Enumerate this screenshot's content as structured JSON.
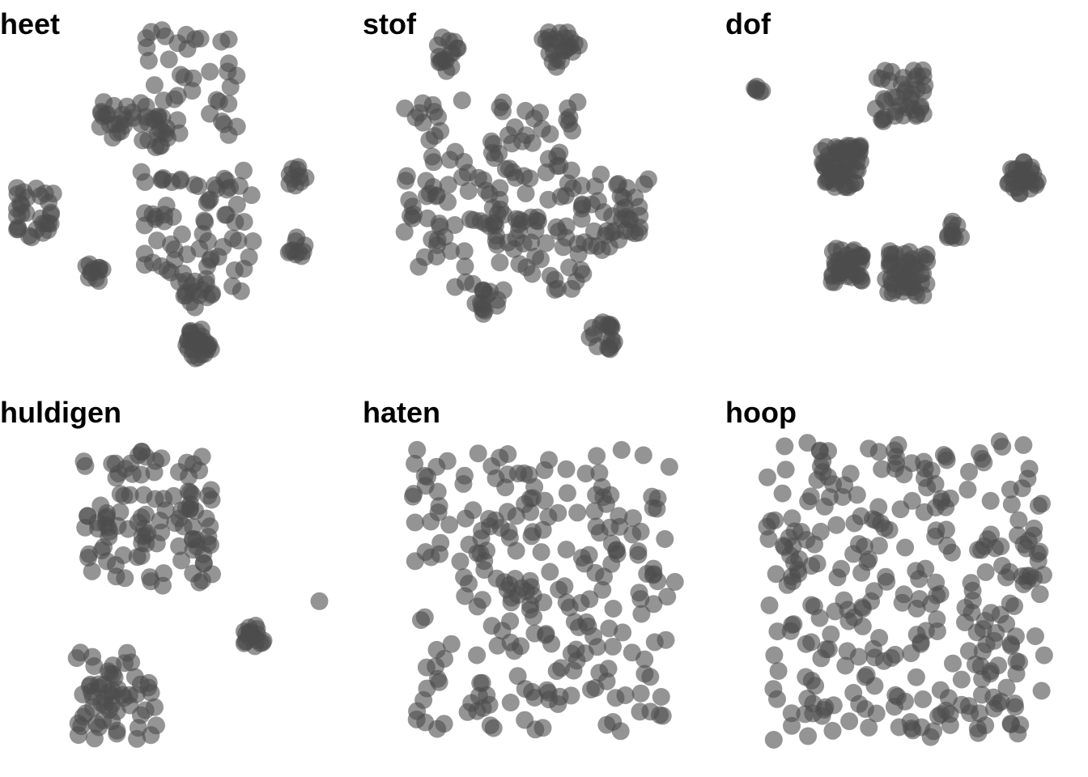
{
  "colors": {
    "point": "#4d4d4d",
    "background": "#ffffff",
    "title": "#000000"
  },
  "chart_data": [
    {
      "type": "scatter",
      "title": "heet",
      "point_opacity": 0.6,
      "grid": false,
      "axes_shown": false,
      "clusters": [
        {
          "cx": 0.05,
          "cy": 0.55,
          "n": 30,
          "spread": 0.15,
          "cluster": "none"
        },
        {
          "cx": 0.52,
          "cy": 0.18,
          "n": 40,
          "spread": 0.3,
          "cluster": "none"
        },
        {
          "cx": 0.55,
          "cy": 0.6,
          "n": 70,
          "spread": 0.35,
          "cluster": "none"
        },
        {
          "cx": 0.3,
          "cy": 0.28,
          "n": 20,
          "spread": 0.06,
          "cluster": "tight"
        },
        {
          "cx": 0.85,
          "cy": 0.45,
          "n": 10,
          "spread": 0.03,
          "cluster": "tight"
        },
        {
          "cx": 0.55,
          "cy": 0.78,
          "n": 14,
          "spread": 0.045,
          "cluster": "tight"
        },
        {
          "cx": 0.23,
          "cy": 0.72,
          "n": 12,
          "spread": 0.035,
          "cluster": "tight"
        },
        {
          "cx": 0.55,
          "cy": 0.92,
          "n": 30,
          "spread": 0.045,
          "cluster": "tight"
        },
        {
          "cx": 0.42,
          "cy": 0.32,
          "n": 18,
          "spread": 0.05,
          "cluster": "tight"
        },
        {
          "cx": 0.85,
          "cy": 0.65,
          "n": 10,
          "spread": 0.03,
          "cluster": "tight"
        }
      ]
    },
    {
      "type": "scatter",
      "title": "stof",
      "point_opacity": 0.6,
      "grid": false,
      "axes_shown": false,
      "clusters": [
        {
          "cx": 0.2,
          "cy": 0.1,
          "n": 16,
          "spread": 0.05,
          "cluster": "tight"
        },
        {
          "cx": 0.55,
          "cy": 0.08,
          "n": 25,
          "spread": 0.06,
          "cluster": "tight"
        },
        {
          "cx": 0.35,
          "cy": 0.5,
          "n": 160,
          "spread": 0.55,
          "cluster": "none"
        },
        {
          "cx": 0.68,
          "cy": 0.9,
          "n": 18,
          "spread": 0.045,
          "cluster": "tight"
        },
        {
          "cx": 0.32,
          "cy": 0.8,
          "n": 14,
          "spread": 0.04,
          "cluster": "tight"
        },
        {
          "cx": 0.72,
          "cy": 0.55,
          "n": 40,
          "spread": 0.22,
          "cluster": "none"
        }
      ]
    },
    {
      "type": "scatter",
      "title": "dof",
      "point_opacity": 0.6,
      "grid": false,
      "axes_shown": false,
      "clusters": [
        {
          "cx": 0.3,
          "cy": 0.42,
          "n": 60,
          "spread": 0.12,
          "cluster": "none"
        },
        {
          "cx": 0.48,
          "cy": 0.22,
          "n": 40,
          "spread": 0.15,
          "cluster": "none"
        },
        {
          "cx": 0.85,
          "cy": 0.45,
          "n": 30,
          "spread": 0.05,
          "cluster": "tight"
        },
        {
          "cx": 0.32,
          "cy": 0.7,
          "n": 40,
          "spread": 0.1,
          "cluster": "none"
        },
        {
          "cx": 0.5,
          "cy": 0.72,
          "n": 50,
          "spread": 0.13,
          "cluster": "none"
        },
        {
          "cx": 0.05,
          "cy": 0.2,
          "n": 6,
          "spread": 0.02,
          "cluster": "tight"
        },
        {
          "cx": 0.65,
          "cy": 0.6,
          "n": 10,
          "spread": 0.05,
          "cluster": "none"
        }
      ]
    },
    {
      "type": "scatter",
      "title": "huldigen",
      "point_opacity": 0.6,
      "grid": false,
      "axes_shown": false,
      "clusters": [
        {
          "cx": 0.4,
          "cy": 0.32,
          "n": 110,
          "spread": 0.4,
          "cluster": "none"
        },
        {
          "cx": 0.3,
          "cy": 0.82,
          "n": 60,
          "spread": 0.25,
          "cluster": "none"
        },
        {
          "cx": 0.72,
          "cy": 0.65,
          "n": 20,
          "spread": 0.035,
          "cluster": "tight"
        },
        {
          "cx": 0.92,
          "cy": 0.55,
          "n": 1,
          "spread": 0.0,
          "cluster": "tight"
        }
      ]
    },
    {
      "type": "scatter",
      "title": "haten",
      "point_opacity": 0.6,
      "grid": false,
      "axes_shown": false,
      "clusters": [
        {
          "cx": 0.5,
          "cy": 0.52,
          "n": 240,
          "spread": 0.8,
          "cluster": "none"
        }
      ]
    },
    {
      "type": "scatter",
      "title": "hoop",
      "point_opacity": 0.6,
      "grid": false,
      "axes_shown": false,
      "clusters": [
        {
          "cx": 0.5,
          "cy": 0.52,
          "n": 300,
          "spread": 0.85,
          "cluster": "none"
        }
      ]
    }
  ]
}
